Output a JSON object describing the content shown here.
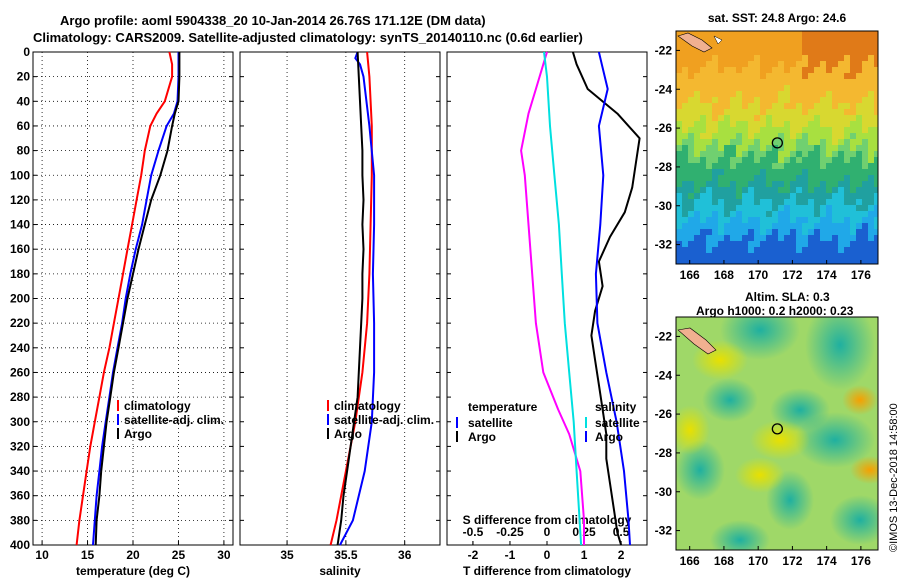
{
  "header": {
    "title_line1": "Argo profile: aoml 5904338_20 10-Jan-2014 26.76S 171.12E (DM data)",
    "title_line2": "Climatology: CARS2009. Satellite-adjusted climatology: synTS_20140110.nc (0.6d earlier)"
  },
  "side_credit": "©IMOS 13-Dec-2018 14:58:00",
  "chart_data": [
    {
      "type": "line",
      "id": "temperature",
      "xlabel": "temperature (deg C)",
      "ylabel": "",
      "xlim": [
        9,
        31
      ],
      "ylim": [
        400,
        0
      ],
      "xticks": [
        10,
        15,
        20,
        25,
        30
      ],
      "yticks": [
        0,
        20,
        40,
        60,
        80,
        100,
        120,
        140,
        160,
        180,
        200,
        220,
        240,
        260,
        280,
        300,
        320,
        340,
        360,
        380,
        400
      ],
      "grid": true,
      "legend": [
        "climatology",
        "satellite-adj. clim.",
        "Argo"
      ],
      "series": [
        {
          "name": "climatology",
          "color": "#ff0000",
          "points": [
            [
              24.0,
              0
            ],
            [
              24.3,
              10
            ],
            [
              24.3,
              20
            ],
            [
              23.5,
              40
            ],
            [
              22.6,
              50
            ],
            [
              21.9,
              60
            ],
            [
              21.3,
              80
            ],
            [
              20.9,
              100
            ],
            [
              20.4,
              120
            ],
            [
              19.9,
              140
            ],
            [
              19.4,
              160
            ],
            [
              18.9,
              180
            ],
            [
              18.4,
              200
            ],
            [
              17.9,
              220
            ],
            [
              17.4,
              240
            ],
            [
              16.8,
              260
            ],
            [
              16.3,
              280
            ],
            [
              15.8,
              300
            ],
            [
              15.3,
              320
            ],
            [
              14.9,
              340
            ],
            [
              14.5,
              360
            ],
            [
              14.1,
              380
            ],
            [
              13.8,
              400
            ]
          ]
        },
        {
          "name": "satellite-adj. clim.",
          "color": "#0000ff",
          "points": [
            [
              25.0,
              0
            ],
            [
              25.0,
              20
            ],
            [
              24.9,
              40
            ],
            [
              24.5,
              50
            ],
            [
              23.7,
              60
            ],
            [
              22.8,
              80
            ],
            [
              22.0,
              100
            ],
            [
              21.5,
              120
            ],
            [
              21.0,
              140
            ],
            [
              20.3,
              160
            ],
            [
              19.7,
              180
            ],
            [
              19.2,
              200
            ],
            [
              18.8,
              220
            ],
            [
              18.3,
              240
            ],
            [
              17.8,
              260
            ],
            [
              17.4,
              280
            ],
            [
              17.0,
              300
            ],
            [
              16.6,
              320
            ],
            [
              16.3,
              340
            ],
            [
              16.0,
              360
            ],
            [
              15.8,
              380
            ],
            [
              15.6,
              400
            ]
          ]
        },
        {
          "name": "Argo",
          "color": "#000000",
          "points": [
            [
              25.1,
              0
            ],
            [
              25.1,
              20
            ],
            [
              25.0,
              40
            ],
            [
              24.6,
              50
            ],
            [
              24.3,
              60
            ],
            [
              23.8,
              80
            ],
            [
              23.0,
              100
            ],
            [
              22.0,
              120
            ],
            [
              21.3,
              140
            ],
            [
              20.6,
              160
            ],
            [
              20.0,
              180
            ],
            [
              19.4,
              200
            ],
            [
              18.9,
              220
            ],
            [
              18.4,
              240
            ],
            [
              17.9,
              260
            ],
            [
              17.5,
              280
            ],
            [
              17.1,
              300
            ],
            [
              16.8,
              320
            ],
            [
              16.5,
              340
            ],
            [
              16.3,
              360
            ],
            [
              16.0,
              380
            ],
            [
              15.9,
              400
            ]
          ]
        }
      ]
    },
    {
      "type": "line",
      "id": "salinity",
      "xlabel": "salinity",
      "ylabel": "",
      "xlim": [
        34.6,
        36.3
      ],
      "ylim": [
        400,
        0
      ],
      "xticks": [
        35,
        35.5,
        36
      ],
      "xtick_labels": [
        "35",
        "35.5",
        "36"
      ],
      "grid": true,
      "legend": [
        "climatology",
        "satellite-adj. clim.",
        "Argo"
      ],
      "series": [
        {
          "name": "climatology",
          "color": "#ff0000",
          "points": [
            [
              35.68,
              0
            ],
            [
              35.7,
              20
            ],
            [
              35.72,
              60
            ],
            [
              35.72,
              100
            ],
            [
              35.71,
              140
            ],
            [
              35.7,
              180
            ],
            [
              35.68,
              220
            ],
            [
              35.64,
              260
            ],
            [
              35.58,
              300
            ],
            [
              35.5,
              340
            ],
            [
              35.42,
              380
            ],
            [
              35.37,
              400
            ]
          ]
        },
        {
          "name": "satellite-adj. clim.",
          "color": "#0000ff",
          "points": [
            [
              35.6,
              0
            ],
            [
              35.58,
              5
            ],
            [
              35.62,
              10
            ],
            [
              35.65,
              20
            ],
            [
              35.7,
              60
            ],
            [
              35.74,
              100
            ],
            [
              35.74,
              140
            ],
            [
              35.73,
              180
            ],
            [
              35.74,
              220
            ],
            [
              35.74,
              260
            ],
            [
              35.72,
              300
            ],
            [
              35.66,
              340
            ],
            [
              35.56,
              380
            ],
            [
              35.45,
              400
            ]
          ]
        },
        {
          "name": "Argo",
          "color": "#000000",
          "points": [
            [
              35.6,
              0
            ],
            [
              35.61,
              20
            ],
            [
              35.62,
              40
            ],
            [
              35.63,
              60
            ],
            [
              35.64,
              80
            ],
            [
              35.64,
              100
            ],
            [
              35.65,
              120
            ],
            [
              35.64,
              140
            ],
            [
              35.65,
              160
            ],
            [
              35.64,
              180
            ],
            [
              35.64,
              200
            ],
            [
              35.63,
              220
            ],
            [
              35.62,
              240
            ],
            [
              35.61,
              260
            ],
            [
              35.6,
              280
            ],
            [
              35.57,
              300
            ],
            [
              35.54,
              320
            ],
            [
              35.51,
              340
            ],
            [
              35.48,
              360
            ],
            [
              35.46,
              380
            ],
            [
              35.43,
              400
            ]
          ]
        }
      ]
    },
    {
      "type": "line",
      "id": "differences",
      "xlabel": "T difference from climatology",
      "top_axis_label": "S difference from climatology",
      "ylabel": "",
      "xlim": [
        -2.7,
        2.7
      ],
      "top_xlim": [
        -0.675,
        0.675
      ],
      "ylim": [
        400,
        0
      ],
      "xticks": [
        -2,
        -1,
        0,
        1,
        2
      ],
      "top_xticks": [
        -0.5,
        -0.25,
        0,
        0.25,
        0.5
      ],
      "top_xtick_labels": [
        "-0.5",
        "-0.25",
        "0",
        "0.25",
        "0.5"
      ],
      "grid": false,
      "legend": [
        "temperature",
        "satellite",
        "Argo",
        "salinity",
        "satellite",
        "Argo"
      ],
      "series": [
        {
          "name": "temperature satellite",
          "axis": "bottom",
          "color": "#ff00ff",
          "points": [
            [
              0.0,
              0
            ],
            [
              -0.1,
              10
            ],
            [
              -0.3,
              30
            ],
            [
              -0.5,
              50
            ],
            [
              -0.7,
              80
            ],
            [
              -0.6,
              100
            ],
            [
              -0.5,
              140
            ],
            [
              -0.4,
              180
            ],
            [
              -0.3,
              220
            ],
            [
              -0.1,
              260
            ],
            [
              0.3,
              290
            ],
            [
              0.6,
              310
            ],
            [
              0.9,
              340
            ],
            [
              1.0,
              380
            ],
            [
              1.0,
              400
            ]
          ]
        },
        {
          "name": "temperature Argo",
          "axis": "bottom",
          "color": "#000000",
          "points": [
            [
              0.7,
              0
            ],
            [
              0.8,
              10
            ],
            [
              1.1,
              30
            ],
            [
              1.9,
              50
            ],
            [
              2.5,
              70
            ],
            [
              2.4,
              90
            ],
            [
              2.3,
              110
            ],
            [
              2.1,
              130
            ],
            [
              1.7,
              150
            ],
            [
              1.4,
              170
            ],
            [
              1.5,
              190
            ],
            [
              1.3,
              210
            ],
            [
              1.2,
              230
            ],
            [
              1.3,
              250
            ],
            [
              1.4,
              270
            ],
            [
              1.5,
              290
            ],
            [
              1.6,
              310
            ],
            [
              1.6,
              330
            ],
            [
              1.7,
              350
            ],
            [
              1.8,
              370
            ],
            [
              1.9,
              390
            ],
            [
              2.0,
              400
            ]
          ]
        },
        {
          "name": "salinity satellite",
          "axis": "top",
          "color": "#00e0e0",
          "points": [
            [
              -0.02,
              0
            ],
            [
              0.0,
              20
            ],
            [
              0.02,
              60
            ],
            [
              0.05,
              100
            ],
            [
              0.08,
              140
            ],
            [
              0.1,
              180
            ],
            [
              0.12,
              220
            ],
            [
              0.15,
              260
            ],
            [
              0.18,
              300
            ],
            [
              0.2,
              340
            ],
            [
              0.22,
              380
            ],
            [
              0.23,
              400
            ]
          ]
        },
        {
          "name": "salinity Argo",
          "axis": "top",
          "color": "#0000ff",
          "points": [
            [
              0.35,
              0
            ],
            [
              0.37,
              10
            ],
            [
              0.41,
              30
            ],
            [
              0.35,
              60
            ],
            [
              0.38,
              100
            ],
            [
              0.36,
              140
            ],
            [
              0.33,
              180
            ],
            [
              0.34,
              220
            ],
            [
              0.4,
              260
            ],
            [
              0.47,
              300
            ],
            [
              0.52,
              340
            ],
            [
              0.55,
              380
            ],
            [
              0.56,
              400
            ]
          ]
        }
      ]
    },
    {
      "type": "heatmap",
      "id": "sst_map",
      "title": "sat. SST: 24.8 Argo: 24.6",
      "xlim": [
        165.2,
        177
      ],
      "ylim": [
        -33,
        -21
      ],
      "xticks": [
        166,
        168,
        170,
        172,
        174,
        176
      ],
      "yticks": [
        -22,
        -24,
        -26,
        -28,
        -30,
        -32
      ],
      "marker": {
        "lon": 171.12,
        "lat": -26.76
      }
    },
    {
      "type": "heatmap",
      "id": "sla_map",
      "title": "Altim. SLA: 0.3",
      "subtitle": "Argo h1000: 0.2 h2000: 0.23",
      "xlim": [
        165.2,
        177
      ],
      "ylim": [
        -33,
        -21
      ],
      "xticks": [
        166,
        168,
        170,
        172,
        174,
        176
      ],
      "yticks": [
        -22,
        -24,
        -26,
        -28,
        -30,
        -32
      ],
      "marker": {
        "lon": 171.12,
        "lat": -26.76
      }
    }
  ]
}
